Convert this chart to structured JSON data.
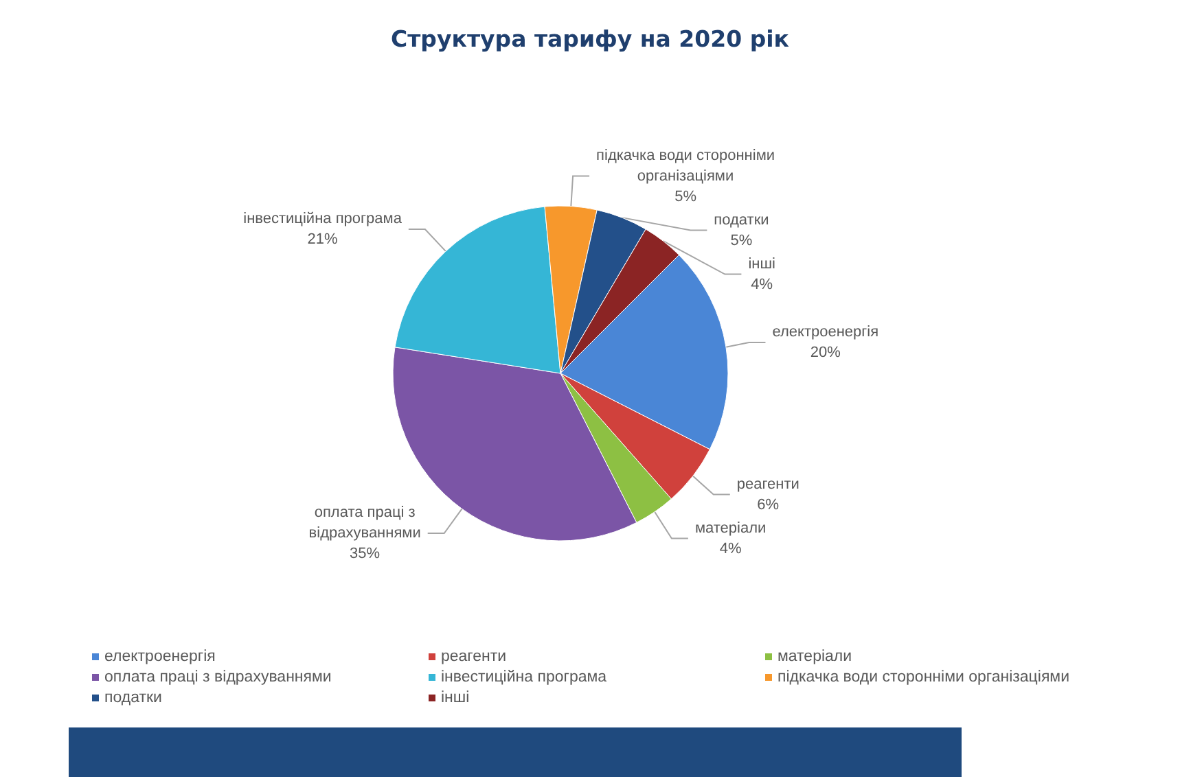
{
  "chart_data": {
    "type": "pie",
    "title": "Структура тарифу на 2020 рік",
    "categories": [
      "електроенергія",
      "реагенти",
      "матеріали",
      "оплата праці з відрахуваннями",
      "інвестиційна програма",
      "підкачка води сторонніми організаціями",
      "податки",
      "інші"
    ],
    "values": [
      20,
      6,
      4,
      35,
      21,
      5,
      5,
      4
    ],
    "colors": [
      "#4a86d6",
      "#d0413c",
      "#8dc043",
      "#7b55a6",
      "#35b6d6",
      "#f7982c",
      "#23508a",
      "#8b2424"
    ],
    "value_labels": [
      "20%",
      "6%",
      "4%",
      "35%",
      "21%",
      "5%",
      "5%",
      "4%"
    ],
    "legend": "bottom"
  }
}
